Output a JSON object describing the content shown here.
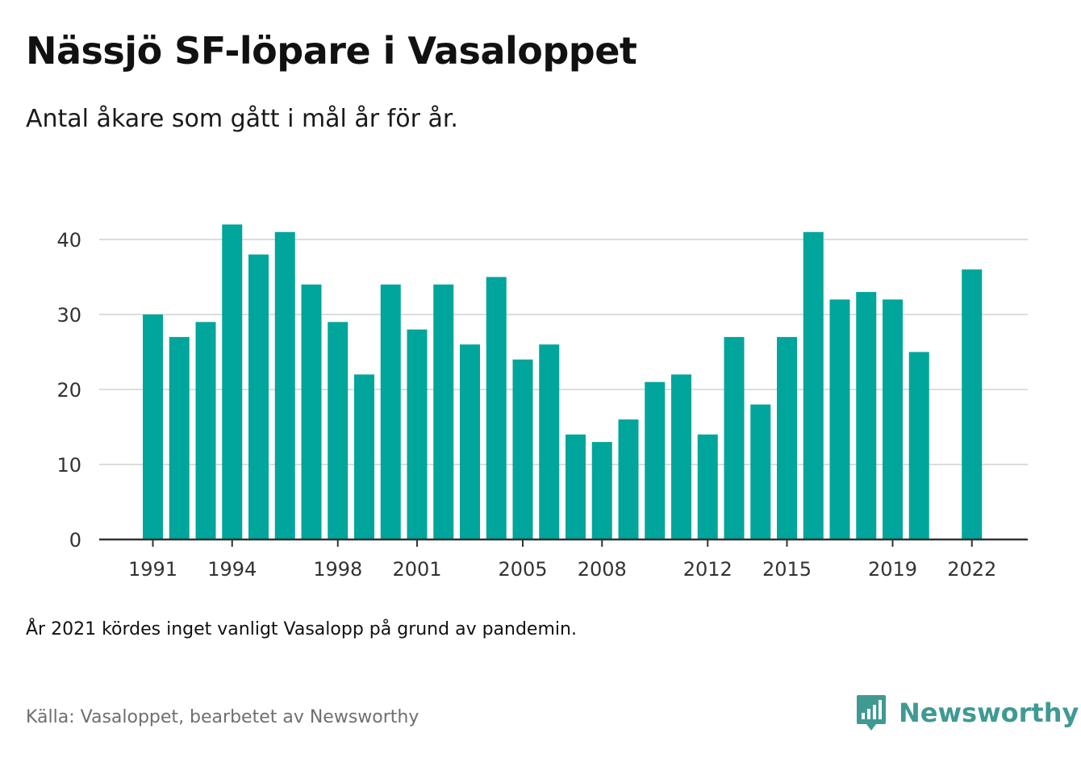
{
  "title": "Nässjö SF-löpare i Vasaloppet",
  "subtitle": "Antal åkare som gått i mål år för år.",
  "note": "År 2021 kördes inget vanligt Vasalopp på grund av pandemin.",
  "source": "Källa: Vasaloppet, bearbetet av Newsworthy",
  "brand": {
    "name": "Newsworthy",
    "logo_icon": "bar-chart-speech-bubble-icon"
  },
  "colors": {
    "bar": "#00a59b",
    "grid": "#dcdcdc",
    "axis": "#333333",
    "brand": "#3f9a92"
  },
  "chart_data": {
    "type": "bar",
    "x": [
      1991,
      1992,
      1993,
      1994,
      1995,
      1996,
      1997,
      1998,
      1999,
      2000,
      2001,
      2002,
      2003,
      2004,
      2005,
      2006,
      2007,
      2008,
      2009,
      2010,
      2011,
      2012,
      2013,
      2014,
      2015,
      2016,
      2017,
      2018,
      2019,
      2020,
      2021,
      2022
    ],
    "values": [
      30,
      27,
      29,
      42,
      38,
      41,
      34,
      29,
      22,
      34,
      28,
      34,
      26,
      35,
      24,
      26,
      14,
      13,
      16,
      21,
      22,
      14,
      27,
      18,
      27,
      41,
      32,
      33,
      32,
      25,
      null,
      36
    ],
    "x_tick_labels": [
      "1991",
      "1994",
      "1998",
      "2001",
      "2005",
      "2008",
      "2012",
      "2015",
      "2019",
      "2022"
    ],
    "y_ticks": [
      0,
      10,
      20,
      30,
      40
    ],
    "ylim": [
      0,
      44
    ],
    "xlabel": "",
    "ylabel": "",
    "grid": true,
    "legend": "none"
  }
}
